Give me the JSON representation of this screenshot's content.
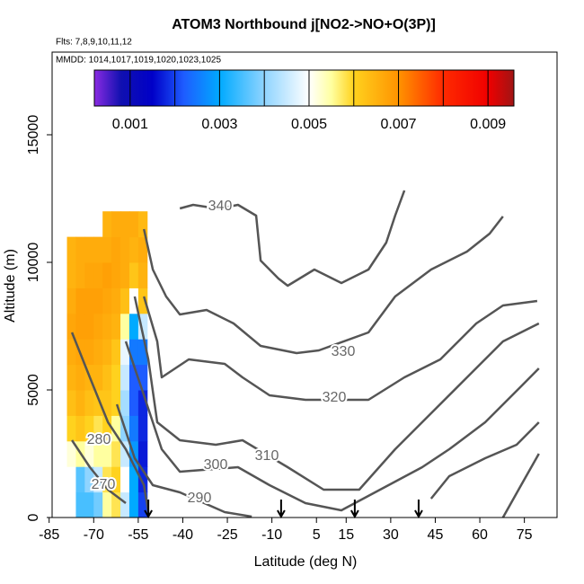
{
  "chart_data": {
    "type": "heatmap",
    "title": "ATOM3 Northbound j[NO2->NO+O(3P)]",
    "subtitle_flights": "Flts: 7,8,9,10,11,12",
    "subtitle_dates": "MMDD: 1014,1017,1019,1020,1023,1025",
    "xlabel": "Latitude (deg N)",
    "ylabel": "Altitude (m)",
    "xlim": [
      -84,
      86
    ],
    "xticks": [
      -85,
      -70,
      -55,
      -40,
      -25,
      -10,
      5,
      15,
      30,
      45,
      60,
      75
    ],
    "ylim": [
      0,
      18240
    ],
    "yticks": [
      0,
      5000,
      10000,
      15000
    ],
    "x_bins": [
      -79,
      -76,
      -73,
      -70,
      -67,
      -64,
      -61,
      -58,
      -55,
      -52
    ],
    "y_bins": [
      0,
      1000,
      2000,
      3000,
      4000,
      5000,
      6000,
      7000,
      8000,
      9000,
      10000,
      11000,
      12000
    ],
    "z": [
      [
        null,
        0.0035,
        0.0035,
        0.0038,
        0.0055,
        0.0058,
        0.0045,
        0.003,
        0.002
      ],
      [
        null,
        0.0036,
        0.004,
        0.0045,
        0.0058,
        0.006,
        0.005,
        0.003,
        0.0018
      ],
      [
        0.0052,
        0.0055,
        0.0052,
        0.0055,
        0.0055,
        0.0058,
        0.0045,
        0.0028,
        0.0017
      ],
      [
        0.006,
        0.0062,
        0.006,
        0.0058,
        0.006,
        0.0055,
        0.004,
        0.0025,
        0.0018
      ],
      [
        0.0063,
        0.0065,
        0.0063,
        0.0062,
        0.0062,
        0.006,
        0.0042,
        0.0022,
        0.0018
      ],
      [
        0.0065,
        0.0066,
        0.0065,
        0.0065,
        0.0063,
        0.006,
        0.0045,
        0.0022,
        0.0022
      ],
      [
        0.0066,
        0.0067,
        0.0067,
        0.0066,
        0.0065,
        0.0062,
        0.0048,
        0.0025,
        0.0025
      ],
      [
        0.0067,
        0.0068,
        0.0068,
        0.0067,
        0.0066,
        0.0065,
        0.0055,
        0.003,
        0.0045
      ],
      [
        0.0066,
        0.0068,
        0.0068,
        0.0068,
        0.0067,
        0.0066,
        0.0063,
        0.005,
        0.0062
      ],
      [
        0.0065,
        0.0066,
        0.0067,
        0.0067,
        0.0068,
        0.0067,
        0.0066,
        0.0062,
        0.0065
      ],
      [
        0.0065,
        0.0066,
        0.0066,
        0.0066,
        0.0066,
        0.0067,
        0.0066,
        0.0065,
        0.0066
      ],
      [
        null,
        null,
        null,
        null,
        0.0065,
        0.0066,
        0.0066,
        0.0066,
        0.0064
      ]
    ],
    "colorbar": {
      "lim": [
        0.0002,
        0.00958
      ],
      "ticks": [
        0.001,
        0.003,
        0.005,
        0.007,
        0.009
      ],
      "breaks": [
        0.001,
        0.002,
        0.003,
        0.004,
        0.005,
        0.006,
        0.007,
        0.008,
        0.009
      ],
      "color_stops": [
        [
          0.0002,
          "#8a2be2"
        ],
        [
          0.0008,
          "#1010b0"
        ],
        [
          0.0015,
          "#0000c8"
        ],
        [
          0.0022,
          "#1e5cff"
        ],
        [
          0.003,
          "#00aaff"
        ],
        [
          0.004,
          "#8fd4ff"
        ],
        [
          0.005,
          "#ffffff"
        ],
        [
          0.0055,
          "#ffffa0"
        ],
        [
          0.006,
          "#ffd21e"
        ],
        [
          0.007,
          "#ff9300"
        ],
        [
          0.008,
          "#ff2a00"
        ],
        [
          0.009,
          "#f00000"
        ],
        [
          0.00958,
          "#a01414"
        ]
      ]
    },
    "contour_color": "#555555",
    "contours": [
      {
        "level": 340,
        "lat": [
          -41,
          -36.5,
          -28,
          -21.4,
          -15.3,
          -13.8,
          -7.8,
          -4.7,
          4.3,
          13.4,
          22.5,
          28.5,
          31.5,
          34.6
        ],
        "alt": [
          12112,
          12253,
          12100,
          12253,
          11830,
          10070,
          9366,
          9084,
          9718,
          9190,
          9718,
          10774,
          11830,
          12816
        ]
      },
      {
        "level": 330,
        "lat": [
          -53.1,
          -50.1,
          -45.6,
          -41,
          -32,
          -22.9,
          -13.8,
          -1.7,
          5.8,
          22.5,
          31.5,
          43.6,
          55.7,
          63.3,
          67.8
        ],
        "alt": [
          11302,
          9718,
          8662,
          7958,
          8134,
          7605,
          6725,
          6443,
          6549,
          7253,
          8662,
          9718,
          10422,
          11126,
          11800
        ]
      },
      {
        "level": 320,
        "lat": [
          -53.1,
          -48.6,
          -47.1,
          -38,
          -25.9,
          -19.9,
          -10.8,
          1.3,
          22.5,
          34.6,
          46.7,
          58.8,
          67.8,
          79.3
        ],
        "alt": [
          8662,
          6901,
          5493,
          6197,
          6021,
          5493,
          4789,
          4613,
          4613,
          5493,
          6197,
          7605,
          8310,
          8486
        ]
      },
      {
        "level": 310,
        "lat": [
          -56.2,
          -51.6,
          -48.6,
          -41,
          -28.9,
          -19.9,
          -4.7,
          7.4,
          19.4,
          31.5,
          43.6,
          55.7,
          67.8,
          79.9
        ],
        "alt": [
          8662,
          6197,
          3732,
          3028,
          2852,
          3028,
          1972,
          1092,
          1092,
          2676,
          4084,
          5493,
          6901,
          7605
        ]
      },
      {
        "level": 300,
        "lat": [
          -59.2,
          -53.1,
          -47.1,
          -41,
          -21.4,
          -10.8,
          1.3,
          13.4,
          40.6,
          49.7,
          61.8,
          73.9,
          79.9
        ],
        "alt": [
          6901,
          4789,
          2676,
          1796,
          1972,
          1268,
          563,
          282,
          1972,
          2676,
          3732,
          5141,
          5845
        ]
      },
      {
        "level": 290,
        "lat": [
          -62.2,
          -56.2,
          -50.1,
          -41,
          -25.9,
          -16.8,
          null,
          43.6,
          49.7,
          61.8,
          72.4,
          79.9
        ],
        "alt": [
          4437,
          2324,
          1268,
          986,
          211,
          35,
          null,
          739,
          1620,
          2324,
          2852,
          3732
        ]
      },
      {
        "level": 280,
        "lat": [
          -77.3,
          -71.3,
          -65.2,
          -59.2,
          -53.1,
          -51.6
        ],
        "alt": [
          7253,
          5493,
          3732,
          2676,
          1268,
          211
        ]
      },
      {
        "level": 270,
        "lat": [
          -77.3,
          -71.3,
          -65.2,
          -59.2,
          null,
          67.8,
          73.9,
          79.9
        ],
        "alt": [
          3028,
          1972,
          1092,
          563,
          null,
          0,
          1268,
          2500
        ]
      }
    ],
    "flight_markers_lat": [
      -51.6,
      -6.9,
      17.9,
      39.4
    ]
  }
}
